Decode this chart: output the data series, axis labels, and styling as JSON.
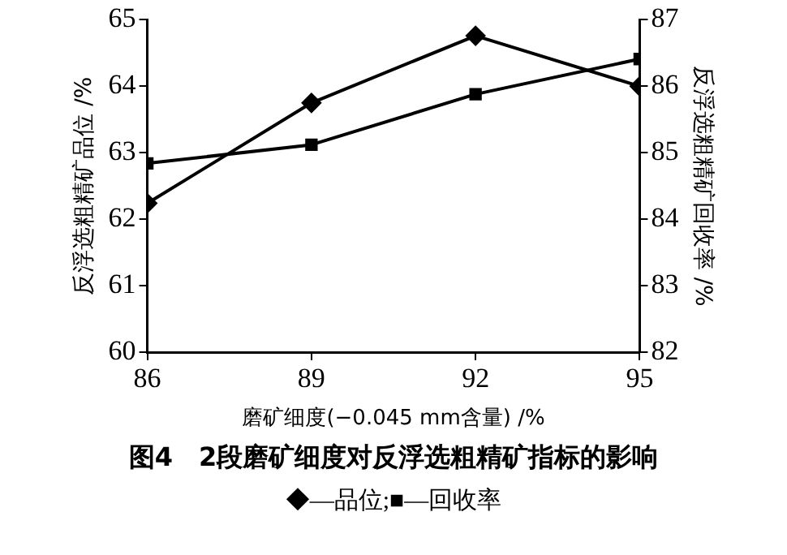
{
  "chart_data": {
    "type": "line",
    "title": "图4　2段磨矿细度对反浮选粗精矿指标的影响",
    "xlabel": "磨矿细度(−0.045 mm含量) /%",
    "ylabel": "反浮选粗精矿品位 /%",
    "y2label": "反浮选粗精矿回收率 /%",
    "x": [
      86,
      89,
      92,
      95
    ],
    "xlim": [
      86,
      95
    ],
    "xticks": [
      86,
      89,
      92,
      95
    ],
    "ylim": [
      60,
      65
    ],
    "yticks": [
      60,
      61,
      62,
      63,
      64,
      65
    ],
    "y2lim": [
      82,
      87
    ],
    "y2ticks": [
      82,
      83,
      84,
      85,
      86,
      87
    ],
    "series": [
      {
        "color": "#000000",
        "marker": "diamond",
        "values": [
          62.24,
          63.75,
          64.76,
          64.0
        ]
      },
      {
        "color": "#000000",
        "marker": "square",
        "axis": "y2",
        "values": [
          84.84,
          85.12,
          85.88,
          86.41
        ]
      }
    ],
    "annotations": [
      "◆—品位;■—回收率"
    ],
    "grid": false,
    "line_style": "solid"
  }
}
